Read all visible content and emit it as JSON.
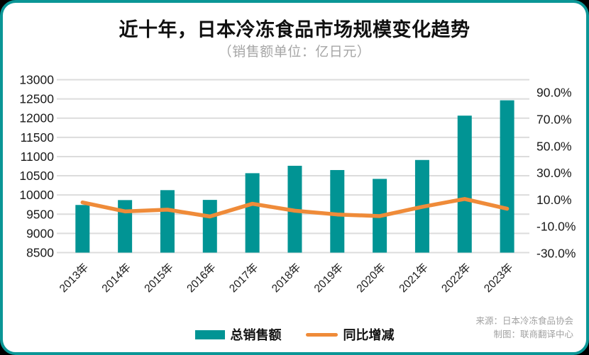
{
  "title": "近十年，日本冷冻食品市场规模变化趋势",
  "subtitle": "（销售额单位：亿日元）",
  "legend": {
    "bar_label": "总销售额",
    "line_label": "同比增减"
  },
  "source": {
    "line1": "来源：日本冷冻食品协会",
    "line2": "制图：联商翻译中心"
  },
  "colors": {
    "bar": "#019494",
    "line": "#ef8b39",
    "card_border": "#0a9696",
    "grid": "#dcdcdc",
    "axis_text": "#1a1a1a",
    "subtitle_gray": "#a6a6a6",
    "source_gray": "#a2a2a2",
    "card_background": "#ffffff",
    "outside_background": "#000000"
  },
  "chart_data": {
    "type": "combo_bar_line",
    "title": "近十年，日本冷冻食品市场规模变化趋势",
    "subtitle_unit": "（销售额单位：亿日元）",
    "categories": [
      "2013年",
      "2014年",
      "2015年",
      "2016年",
      "2017年",
      "2018年",
      "2019年",
      "2020年",
      "2021年",
      "2022年",
      "2023年"
    ],
    "series": [
      {
        "name": "总销售额",
        "type": "bar",
        "axis": "left",
        "unit": "亿日元",
        "color": "#019494",
        "values": [
          9740,
          9867,
          10126,
          9872,
          10567,
          10760,
          10649,
          10419,
          10911,
          12065,
          12464
        ]
      },
      {
        "name": "同比增减",
        "type": "line",
        "axis": "right",
        "unit": "%",
        "color": "#ef8b39",
        "values_percent": [
          8.0,
          1.3,
          2.6,
          -2.5,
          7.0,
          1.8,
          -1.0,
          -2.2,
          4.7,
          10.6,
          3.3
        ]
      }
    ],
    "left_axis": {
      "min": 8500,
      "max": 13000,
      "step": 500,
      "tick_labels": [
        "13000",
        "12500",
        "12000",
        "11500",
        "11000",
        "10500",
        "10000",
        "9500",
        "9000",
        "8500"
      ]
    },
    "right_axis": {
      "tick_values": [
        90,
        70,
        50,
        30,
        10,
        -10,
        -30
      ],
      "tick_labels": [
        "90.0%",
        "70.0%",
        "50.0%",
        "30.0%",
        "10.0%",
        "-10.0%",
        "-30.0%"
      ]
    },
    "grid": true,
    "legend_position": "bottom"
  }
}
